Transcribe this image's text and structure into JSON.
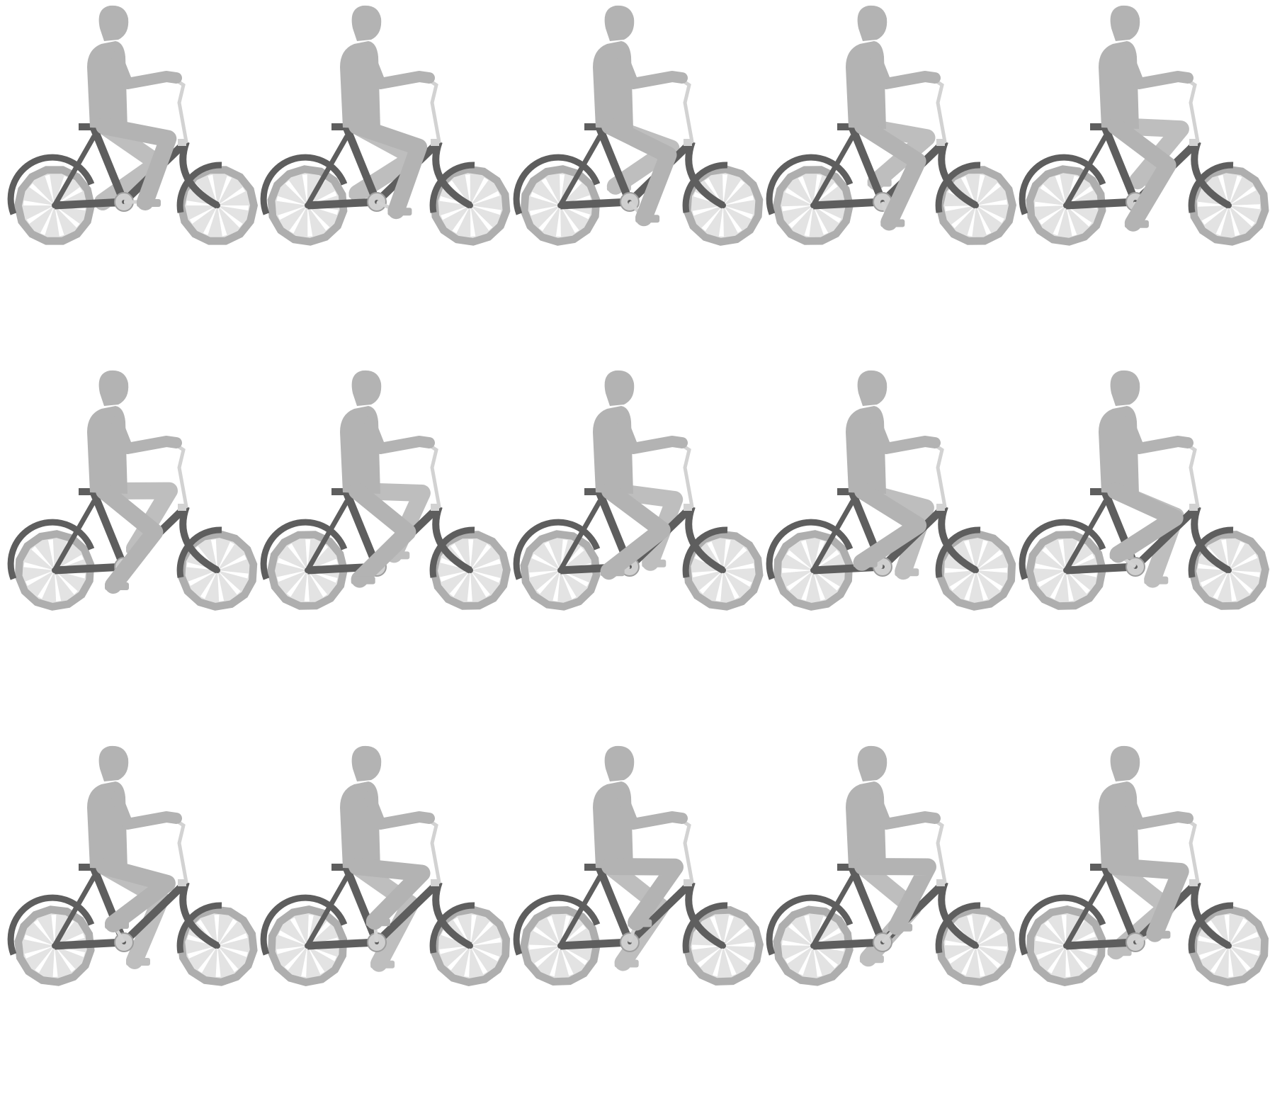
{
  "sprite_sheet": {
    "rows": 3,
    "columns": 5,
    "frame_count": 15,
    "colors": {
      "background": "#ffffff",
      "rider": "#b3b3b3",
      "frame": "#5e5e5e",
      "tire": "#aeaeae",
      "wheel_fill": "#e3e3e3",
      "spoke": "#ffffff",
      "chainring": "#cfcfcf",
      "handlebar": "#d2d2d2"
    },
    "frames": [
      {
        "crank_angle": 0
      },
      {
        "crank_angle": 24
      },
      {
        "crank_angle": 48
      },
      {
        "crank_angle": 72
      },
      {
        "crank_angle": 96
      },
      {
        "crank_angle": 120
      },
      {
        "crank_angle": 144
      },
      {
        "crank_angle": 168
      },
      {
        "crank_angle": 192
      },
      {
        "crank_angle": 216
      },
      {
        "crank_angle": 240
      },
      {
        "crank_angle": 264
      },
      {
        "crank_angle": 288
      },
      {
        "crank_angle": 312
      },
      {
        "crank_angle": 336
      }
    ]
  }
}
